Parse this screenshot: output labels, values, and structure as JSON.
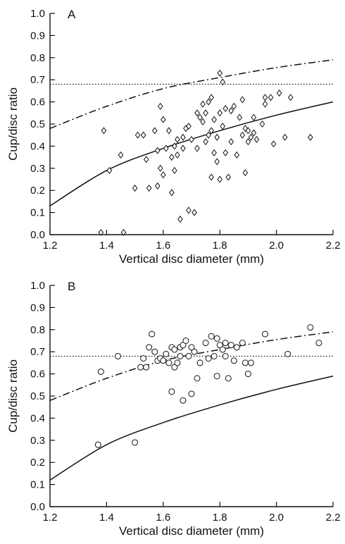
{
  "chart_data": [
    {
      "type": "scatter",
      "panel_label": "A",
      "marker": "diamond",
      "xlabel": "Vertical disc diameter (mm)",
      "ylabel": "Cup/disc ratio",
      "xlim": [
        1.2,
        2.2
      ],
      "ylim": [
        0.0,
        1.0
      ],
      "x_ticks": [
        "1.2",
        "1.4",
        "1.6",
        "1.8",
        "2.0",
        "2.2"
      ],
      "y_ticks": [
        "0.0",
        "0.1",
        "0.2",
        "0.3",
        "0.4",
        "0.5",
        "0.6",
        "0.7",
        "0.8",
        "0.9",
        "1.0"
      ],
      "grid": false,
      "reference_line": {
        "style": "dotted",
        "y": 0.68
      },
      "curves": [
        {
          "style": "solid",
          "x": [
            1.2,
            1.4,
            1.6,
            1.8,
            2.0,
            2.2
          ],
          "y": [
            0.13,
            0.29,
            0.39,
            0.47,
            0.54,
            0.6
          ]
        },
        {
          "style": "dash-dot",
          "x": [
            1.2,
            1.4,
            1.6,
            1.8,
            2.0,
            2.2
          ],
          "y": [
            0.48,
            0.58,
            0.66,
            0.71,
            0.755,
            0.79
          ]
        }
      ],
      "points": [
        {
          "x": 1.38,
          "y": 0.01
        },
        {
          "x": 1.39,
          "y": 0.47
        },
        {
          "x": 1.41,
          "y": 0.29
        },
        {
          "x": 1.45,
          "y": 0.36
        },
        {
          "x": 1.46,
          "y": 0.01
        },
        {
          "x": 1.5,
          "y": 0.21
        },
        {
          "x": 1.51,
          "y": 0.45
        },
        {
          "x": 1.53,
          "y": 0.45
        },
        {
          "x": 1.54,
          "y": 0.34
        },
        {
          "x": 1.55,
          "y": 0.21
        },
        {
          "x": 1.57,
          "y": 0.47
        },
        {
          "x": 1.58,
          "y": 0.38
        },
        {
          "x": 1.58,
          "y": 0.22
        },
        {
          "x": 1.59,
          "y": 0.58
        },
        {
          "x": 1.59,
          "y": 0.3
        },
        {
          "x": 1.6,
          "y": 0.52
        },
        {
          "x": 1.6,
          "y": 0.27
        },
        {
          "x": 1.61,
          "y": 0.39
        },
        {
          "x": 1.62,
          "y": 0.47
        },
        {
          "x": 1.63,
          "y": 0.35
        },
        {
          "x": 1.63,
          "y": 0.19
        },
        {
          "x": 1.64,
          "y": 0.4
        },
        {
          "x": 1.64,
          "y": 0.29
        },
        {
          "x": 1.65,
          "y": 0.36
        },
        {
          "x": 1.65,
          "y": 0.43
        },
        {
          "x": 1.66,
          "y": 0.07
        },
        {
          "x": 1.67,
          "y": 0.44
        },
        {
          "x": 1.67,
          "y": 0.39
        },
        {
          "x": 1.68,
          "y": 0.48
        },
        {
          "x": 1.69,
          "y": 0.11
        },
        {
          "x": 1.69,
          "y": 0.49
        },
        {
          "x": 1.7,
          "y": 0.43
        },
        {
          "x": 1.71,
          "y": 0.1
        },
        {
          "x": 1.72,
          "y": 0.55
        },
        {
          "x": 1.72,
          "y": 0.39
        },
        {
          "x": 1.73,
          "y": 0.53
        },
        {
          "x": 1.74,
          "y": 0.59
        },
        {
          "x": 1.74,
          "y": 0.51
        },
        {
          "x": 1.75,
          "y": 0.42
        },
        {
          "x": 1.75,
          "y": 0.55
        },
        {
          "x": 1.76,
          "y": 0.45
        },
        {
          "x": 1.76,
          "y": 0.6
        },
        {
          "x": 1.77,
          "y": 0.47
        },
        {
          "x": 1.77,
          "y": 0.26
        },
        {
          "x": 1.77,
          "y": 0.62
        },
        {
          "x": 1.78,
          "y": 0.37
        },
        {
          "x": 1.78,
          "y": 0.52
        },
        {
          "x": 1.79,
          "y": 0.33
        },
        {
          "x": 1.79,
          "y": 0.44
        },
        {
          "x": 1.8,
          "y": 0.25
        },
        {
          "x": 1.8,
          "y": 0.73
        },
        {
          "x": 1.8,
          "y": 0.55
        },
        {
          "x": 1.81,
          "y": 0.69
        },
        {
          "x": 1.81,
          "y": 0.49
        },
        {
          "x": 1.82,
          "y": 0.37
        },
        {
          "x": 1.82,
          "y": 0.57
        },
        {
          "x": 1.83,
          "y": 0.26
        },
        {
          "x": 1.84,
          "y": 0.42
        },
        {
          "x": 1.84,
          "y": 0.56
        },
        {
          "x": 1.85,
          "y": 0.58
        },
        {
          "x": 1.86,
          "y": 0.36
        },
        {
          "x": 1.87,
          "y": 0.53
        },
        {
          "x": 1.88,
          "y": 0.61
        },
        {
          "x": 1.88,
          "y": 0.45
        },
        {
          "x": 1.89,
          "y": 0.28
        },
        {
          "x": 1.89,
          "y": 0.48
        },
        {
          "x": 1.9,
          "y": 0.47
        },
        {
          "x": 1.9,
          "y": 0.42
        },
        {
          "x": 1.91,
          "y": 0.44
        },
        {
          "x": 1.92,
          "y": 0.53
        },
        {
          "x": 1.92,
          "y": 0.46
        },
        {
          "x": 1.93,
          "y": 0.43
        },
        {
          "x": 1.95,
          "y": 0.5
        },
        {
          "x": 1.96,
          "y": 0.59
        },
        {
          "x": 1.96,
          "y": 0.62
        },
        {
          "x": 1.98,
          "y": 0.62
        },
        {
          "x": 1.99,
          "y": 0.41
        },
        {
          "x": 2.01,
          "y": 0.64
        },
        {
          "x": 2.03,
          "y": 0.44
        },
        {
          "x": 2.05,
          "y": 0.62
        },
        {
          "x": 2.12,
          "y": 0.44
        }
      ]
    },
    {
      "type": "scatter",
      "panel_label": "B",
      "marker": "circle",
      "xlabel": "Vertical disc diameter (mm)",
      "ylabel": "Cup/disc ratio",
      "xlim": [
        1.2,
        2.2
      ],
      "ylim": [
        0.0,
        1.0
      ],
      "x_ticks": [
        "1.2",
        "1.4",
        "1.6",
        "1.8",
        "2.0",
        "2.2"
      ],
      "y_ticks": [
        "0.0",
        "0.1",
        "0.2",
        "0.3",
        "0.4",
        "0.5",
        "0.6",
        "0.7",
        "0.8",
        "0.9",
        "1.0"
      ],
      "grid": false,
      "reference_line": {
        "style": "dotted",
        "y": 0.68
      },
      "curves": [
        {
          "style": "solid",
          "x": [
            1.2,
            1.4,
            1.6,
            1.8,
            2.0,
            2.2
          ],
          "y": [
            0.12,
            0.28,
            0.38,
            0.46,
            0.53,
            0.59
          ]
        },
        {
          "style": "dash-dot",
          "x": [
            1.2,
            1.4,
            1.6,
            1.8,
            2.0,
            2.2
          ],
          "y": [
            0.48,
            0.58,
            0.66,
            0.71,
            0.755,
            0.79
          ]
        }
      ],
      "points": [
        {
          "x": 1.37,
          "y": 0.28
        },
        {
          "x": 1.38,
          "y": 0.61
        },
        {
          "x": 1.44,
          "y": 0.68
        },
        {
          "x": 1.5,
          "y": 0.29
        },
        {
          "x": 1.52,
          "y": 0.63
        },
        {
          "x": 1.53,
          "y": 0.67
        },
        {
          "x": 1.54,
          "y": 0.63
        },
        {
          "x": 1.55,
          "y": 0.72
        },
        {
          "x": 1.56,
          "y": 0.78
        },
        {
          "x": 1.57,
          "y": 0.7
        },
        {
          "x": 1.58,
          "y": 0.66
        },
        {
          "x": 1.59,
          "y": 0.67
        },
        {
          "x": 1.6,
          "y": 0.66
        },
        {
          "x": 1.61,
          "y": 0.69
        },
        {
          "x": 1.62,
          "y": 0.65
        },
        {
          "x": 1.63,
          "y": 0.52
        },
        {
          "x": 1.63,
          "y": 0.72
        },
        {
          "x": 1.64,
          "y": 0.71
        },
        {
          "x": 1.64,
          "y": 0.63
        },
        {
          "x": 1.65,
          "y": 0.65
        },
        {
          "x": 1.66,
          "y": 0.68
        },
        {
          "x": 1.66,
          "y": 0.72
        },
        {
          "x": 1.67,
          "y": 0.48
        },
        {
          "x": 1.67,
          "y": 0.73
        },
        {
          "x": 1.68,
          "y": 0.75
        },
        {
          "x": 1.69,
          "y": 0.68
        },
        {
          "x": 1.7,
          "y": 0.51
        },
        {
          "x": 1.7,
          "y": 0.72
        },
        {
          "x": 1.71,
          "y": 0.7
        },
        {
          "x": 1.72,
          "y": 0.58
        },
        {
          "x": 1.73,
          "y": 0.65
        },
        {
          "x": 1.75,
          "y": 0.74
        },
        {
          "x": 1.76,
          "y": 0.67
        },
        {
          "x": 1.77,
          "y": 0.77
        },
        {
          "x": 1.78,
          "y": 0.68
        },
        {
          "x": 1.79,
          "y": 0.76
        },
        {
          "x": 1.79,
          "y": 0.59
        },
        {
          "x": 1.8,
          "y": 0.73
        },
        {
          "x": 1.81,
          "y": 0.71
        },
        {
          "x": 1.82,
          "y": 0.74
        },
        {
          "x": 1.82,
          "y": 0.68
        },
        {
          "x": 1.83,
          "y": 0.58
        },
        {
          "x": 1.84,
          "y": 0.73
        },
        {
          "x": 1.85,
          "y": 0.66
        },
        {
          "x": 1.86,
          "y": 0.72
        },
        {
          "x": 1.88,
          "y": 0.74
        },
        {
          "x": 1.89,
          "y": 0.65
        },
        {
          "x": 1.9,
          "y": 0.6
        },
        {
          "x": 1.91,
          "y": 0.65
        },
        {
          "x": 1.96,
          "y": 0.78
        },
        {
          "x": 2.04,
          "y": 0.69
        },
        {
          "x": 2.12,
          "y": 0.81
        },
        {
          "x": 2.15,
          "y": 0.74
        }
      ]
    }
  ]
}
